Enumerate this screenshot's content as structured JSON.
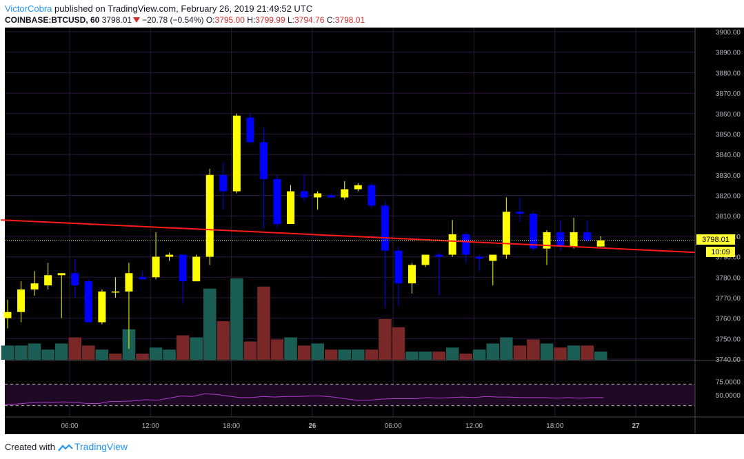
{
  "header": {
    "author": "VictorCobra",
    "published_text": "published on TradingView.com, February 26, 2019 21:49:52 UTC",
    "symbol": "COINBASE:BTCUSD, 60",
    "last": "3798.01",
    "change": "−20.78 (−0.54%)",
    "o_label": "O:",
    "o_value": "3795.00",
    "h_label": "H:",
    "h_value": "3799.99",
    "l_label": "L:",
    "l_value": "3794.76",
    "c_label": "C:",
    "c_value": "3798.01"
  },
  "price_axis": {
    "ticks": [
      "3900.00",
      "3890.00",
      "3880.00",
      "3870.00",
      "3860.00",
      "3850.00",
      "3840.00",
      "3830.00",
      "3820.00",
      "3810.00",
      "3800.00",
      "3790.00",
      "3780.00",
      "3770.00",
      "3760.00",
      "3750.00",
      "3740.00"
    ],
    "last_price_label": "3798.01",
    "countdown_label": "10:09"
  },
  "rsi_axis": {
    "ticks": [
      "75.0000",
      "50.0000"
    ]
  },
  "time_axis": {
    "ticks": [
      "06:00",
      "12:00",
      "18:00",
      "26",
      "06:00",
      "12:00",
      "18:00",
      "27"
    ]
  },
  "footer": {
    "created_with": "Created with",
    "brand": "TradingView"
  },
  "colors": {
    "background": "#000000",
    "grid": "#2b1740",
    "bull": "#ffff00",
    "bear": "#0000ff",
    "vol_up": "#1b5e55",
    "vol_down": "#7a2727",
    "trendline": "#ff1a1a",
    "rsi_line": "#b03ad0",
    "rsi_band": "#1e0a24",
    "last_price": "#ffff66",
    "axis_text": "#b2b5be"
  },
  "chart_data": {
    "type": "candlestick",
    "symbol": "COINBASE:BTCUSD",
    "interval": "60",
    "ylim": [
      3740,
      3900
    ],
    "time_labels": [
      "06:00",
      "12:00",
      "18:00",
      "26",
      "06:00",
      "12:00",
      "18:00",
      "27"
    ],
    "time_label_candle_index": [
      5,
      11,
      17,
      23,
      29,
      35,
      41,
      47
    ],
    "candles": [
      {
        "o": 3760,
        "h": 3769,
        "l": 3755,
        "c": 3763
      },
      {
        "o": 3763,
        "h": 3778,
        "l": 3758,
        "c": 3774
      },
      {
        "o": 3774,
        "h": 3783,
        "l": 3771,
        "c": 3777
      },
      {
        "o": 3776,
        "h": 3787,
        "l": 3774,
        "c": 3781
      },
      {
        "o": 3781,
        "h": 3782,
        "l": 3760,
        "c": 3782
      },
      {
        "o": 3782,
        "h": 3789,
        "l": 3770,
        "c": 3776
      },
      {
        "o": 3778,
        "h": 3779,
        "l": 3758,
        "c": 3758
      },
      {
        "o": 3758,
        "h": 3774,
        "l": 3757,
        "c": 3773
      },
      {
        "o": 3773,
        "h": 3780,
        "l": 3770,
        "c": 3773
      },
      {
        "o": 3773,
        "h": 3787,
        "l": 3745,
        "c": 3782
      },
      {
        "o": 3780,
        "h": 3783,
        "l": 3779,
        "c": 3779
      },
      {
        "o": 3780,
        "h": 3802,
        "l": 3779,
        "c": 3790
      },
      {
        "o": 3790,
        "h": 3792,
        "l": 3788,
        "c": 3791
      },
      {
        "o": 3791,
        "h": 3791,
        "l": 3767,
        "c": 3778
      },
      {
        "o": 3778,
        "h": 3791,
        "l": 3778,
        "c": 3790
      },
      {
        "o": 3790,
        "h": 3833,
        "l": 3786,
        "c": 3830
      },
      {
        "o": 3830,
        "h": 3836,
        "l": 3813,
        "c": 3822
      },
      {
        "o": 3822,
        "h": 3860,
        "l": 3821,
        "c": 3859
      },
      {
        "o": 3858,
        "h": 3860,
        "l": 3845,
        "c": 3846
      },
      {
        "o": 3846,
        "h": 3853,
        "l": 3804,
        "c": 3828
      },
      {
        "o": 3828,
        "h": 3830,
        "l": 3804,
        "c": 3806
      },
      {
        "o": 3806,
        "h": 3825,
        "l": 3806,
        "c": 3822
      },
      {
        "o": 3822,
        "h": 3830,
        "l": 3817,
        "c": 3819
      },
      {
        "o": 3819,
        "h": 3822,
        "l": 3813,
        "c": 3821
      },
      {
        "o": 3820,
        "h": 3821,
        "l": 3819,
        "c": 3819
      },
      {
        "o": 3819,
        "h": 3827,
        "l": 3818,
        "c": 3823
      },
      {
        "o": 3823,
        "h": 3826,
        "l": 3822,
        "c": 3825
      },
      {
        "o": 3825,
        "h": 3826,
        "l": 3814,
        "c": 3815
      },
      {
        "o": 3815,
        "h": 3817,
        "l": 3765,
        "c": 3793
      },
      {
        "o": 3793,
        "h": 3795,
        "l": 3766,
        "c": 3777
      },
      {
        "o": 3777,
        "h": 3787,
        "l": 3772,
        "c": 3786
      },
      {
        "o": 3786,
        "h": 3791,
        "l": 3785,
        "c": 3791
      },
      {
        "o": 3791,
        "h": 3792,
        "l": 3771,
        "c": 3790
      },
      {
        "o": 3791,
        "h": 3808,
        "l": 3790,
        "c": 3801
      },
      {
        "o": 3801,
        "h": 3802,
        "l": 3787,
        "c": 3791
      },
      {
        "o": 3790,
        "h": 3791,
        "l": 3783,
        "c": 3789
      },
      {
        "o": 3788,
        "h": 3791,
        "l": 3776,
        "c": 3791
      },
      {
        "o": 3791,
        "h": 3819,
        "l": 3789,
        "c": 3812
      },
      {
        "o": 3812,
        "h": 3819,
        "l": 3807,
        "c": 3811
      },
      {
        "o": 3811,
        "h": 3812,
        "l": 3793,
        "c": 3794
      },
      {
        "o": 3794,
        "h": 3803,
        "l": 3786,
        "c": 3802
      },
      {
        "o": 3802,
        "h": 3808,
        "l": 3793,
        "c": 3795
      },
      {
        "o": 3795,
        "h": 3809,
        "l": 3794,
        "c": 3802
      },
      {
        "o": 3802,
        "h": 3808,
        "l": 3797,
        "c": 3798
      },
      {
        "o": 3795,
        "h": 3800,
        "l": 3795,
        "c": 3798
      }
    ],
    "volume": [
      {
        "v": 7,
        "up": true
      },
      {
        "v": 7,
        "up": true
      },
      {
        "v": 8,
        "up": true
      },
      {
        "v": 5,
        "up": true
      },
      {
        "v": 8,
        "up": true
      },
      {
        "v": 11,
        "up": false
      },
      {
        "v": 7,
        "up": false
      },
      {
        "v": 5,
        "up": true
      },
      {
        "v": 3,
        "up": false
      },
      {
        "v": 15,
        "up": true
      },
      {
        "v": 3,
        "up": false
      },
      {
        "v": 6,
        "up": true
      },
      {
        "v": 5,
        "up": true
      },
      {
        "v": 12,
        "up": false
      },
      {
        "v": 11,
        "up": true
      },
      {
        "v": 35,
        "up": true
      },
      {
        "v": 19,
        "up": false
      },
      {
        "v": 40,
        "up": true
      },
      {
        "v": 9,
        "up": false
      },
      {
        "v": 36,
        "up": false
      },
      {
        "v": 10,
        "up": false
      },
      {
        "v": 11,
        "up": true
      },
      {
        "v": 7,
        "up": false
      },
      {
        "v": 8,
        "up": true
      },
      {
        "v": 5,
        "up": false
      },
      {
        "v": 5,
        "up": true
      },
      {
        "v": 5,
        "up": true
      },
      {
        "v": 5,
        "up": false
      },
      {
        "v": 20,
        "up": false
      },
      {
        "v": 16,
        "up": false
      },
      {
        "v": 4,
        "up": true
      },
      {
        "v": 4,
        "up": true
      },
      {
        "v": 4,
        "up": false
      },
      {
        "v": 6,
        "up": true
      },
      {
        "v": 3,
        "up": false
      },
      {
        "v": 5,
        "up": true
      },
      {
        "v": 8,
        "up": true
      },
      {
        "v": 11,
        "up": true
      },
      {
        "v": 7,
        "up": false
      },
      {
        "v": 10,
        "up": false
      },
      {
        "v": 8,
        "up": true
      },
      {
        "v": 6,
        "up": false
      },
      {
        "v": 7,
        "up": true
      },
      {
        "v": 7,
        "up": false
      },
      {
        "v": 4,
        "up": true
      }
    ],
    "trendline": {
      "from": {
        "i": -0.5,
        "price": 3808
      },
      "to": {
        "i": 51.5,
        "price": 3792
      }
    },
    "last_price": 3798.01,
    "rsi": {
      "bands": [
        70,
        30
      ],
      "values": [
        32,
        33,
        35,
        36,
        36,
        37,
        36,
        34,
        34,
        38,
        38,
        39,
        41,
        40,
        44,
        48,
        47,
        52,
        51,
        48,
        45,
        45,
        47,
        46,
        47,
        47,
        48,
        48,
        46,
        43,
        40,
        40,
        42,
        43,
        43,
        43,
        45,
        44,
        45,
        46,
        45,
        47,
        46,
        46,
        45,
        45,
        45,
        44,
        45,
        44,
        45,
        45
      ]
    }
  }
}
